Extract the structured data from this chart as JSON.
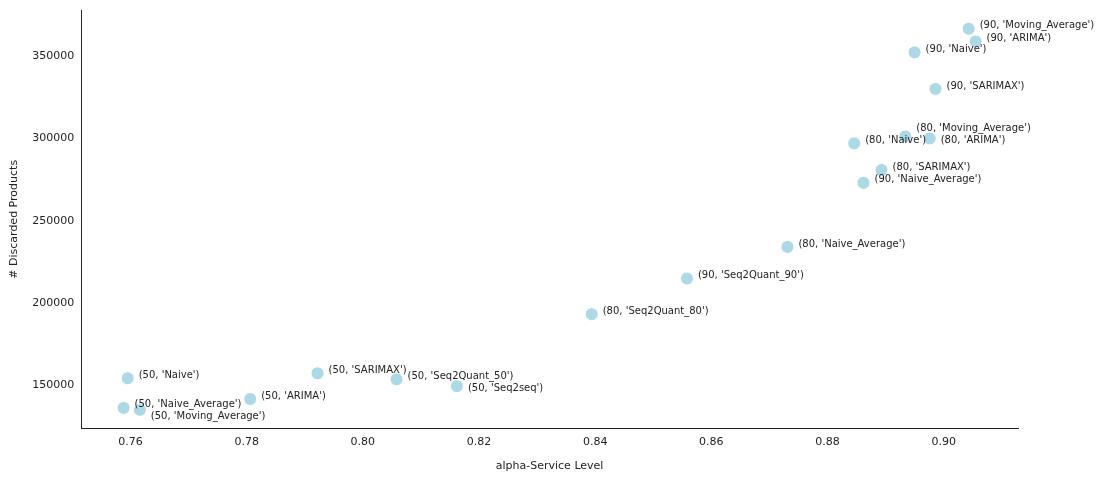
{
  "chart_data": {
    "type": "scatter",
    "xlabel": "alpha-Service Level",
    "ylabel": "# Discarded Products",
    "marker": "circle",
    "grid": false,
    "legend": false,
    "xlim": [
      0.7515,
      0.9128
    ],
    "xticks": [
      {
        "value": 0.76,
        "label": "0.76"
      },
      {
        "value": 0.78,
        "label": "0.78"
      },
      {
        "value": 0.8,
        "label": "0.80"
      },
      {
        "value": 0.82,
        "label": "0.82"
      },
      {
        "value": 0.84,
        "label": "0.84"
      },
      {
        "value": 0.86,
        "label": "0.86"
      },
      {
        "value": 0.88,
        "label": "0.88"
      },
      {
        "value": 0.9,
        "label": "0.90"
      }
    ],
    "ylim": [
      123600,
      378200
    ],
    "yticks": [
      150000,
      200000,
      250000,
      300000,
      350000
    ],
    "series": [
      {
        "color": "#add8e6",
        "x": [
          0.7595,
          0.7588,
          0.7616,
          0.7806,
          0.7922,
          0.8058,
          0.8162,
          0.8394,
          0.8558,
          0.8731,
          0.8862,
          0.8893,
          0.8846,
          0.8934,
          0.8976,
          0.8986,
          0.895,
          0.9055,
          0.9043
        ],
        "values": [
          154200,
          136200,
          135000,
          141600,
          157200,
          153600,
          149400,
          193200,
          214900,
          234100,
          273100,
          280900,
          297100,
          301300,
          300100,
          330200,
          352400,
          359000,
          366800
        ]
      }
    ],
    "annotations": [
      {
        "text": "(50, 'Naive')",
        "x": 0.7595,
        "y": 154200
      },
      {
        "text": "(50, 'Naive_Average')",
        "x": 0.7588,
        "y": 136200
      },
      {
        "text": "(50, 'Moving_Average')",
        "x": 0.7616,
        "y": 135000
      },
      {
        "text": "(50, 'ARIMA')",
        "x": 0.7806,
        "y": 141600
      },
      {
        "text": "(50, 'SARIMAX')",
        "x": 0.7922,
        "y": 157200
      },
      {
        "text": "(50, 'Seq2Quant_50')",
        "x": 0.8058,
        "y": 153600
      },
      {
        "text": "(50, 'Seq2seq')",
        "x": 0.8162,
        "y": 149400
      },
      {
        "text": "(80, 'Seq2Quant_80')",
        "x": 0.8394,
        "y": 193200
      },
      {
        "text": "(90, 'Seq2Quant_90')",
        "x": 0.8558,
        "y": 214900
      },
      {
        "text": "(80, 'Naive_Average')",
        "x": 0.8731,
        "y": 234100
      },
      {
        "text": "(90, 'Naive_Average')",
        "x": 0.8862,
        "y": 273100
      },
      {
        "text": "(80, 'SARIMAX')",
        "x": 0.8893,
        "y": 280900
      },
      {
        "text": "(80, 'Naive')",
        "x": 0.8846,
        "y": 297100
      },
      {
        "text": "(80, 'Moving_Average')",
        "x": 0.8934,
        "y": 301300
      },
      {
        "text": "(80, 'ARIMA')",
        "x": 0.8976,
        "y": 300100
      },
      {
        "text": "(90, 'SARIMAX')",
        "x": 0.8986,
        "y": 330200
      },
      {
        "text": "(90, 'Naive')",
        "x": 0.895,
        "y": 352400
      },
      {
        "text": "(90, 'ARIMA')",
        "x": 0.9055,
        "y": 359000
      },
      {
        "text": "(90, 'Moving_Average')",
        "x": 0.9043,
        "y": 366800
      }
    ]
  }
}
